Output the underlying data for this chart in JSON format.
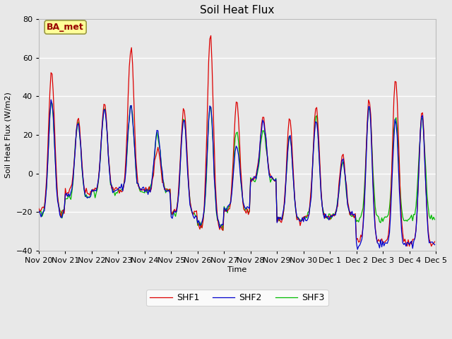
{
  "title": "Soil Heat Flux",
  "ylabel": "Soil Heat Flux (W/m2)",
  "xlabel": "Time",
  "ylim": [
    -40,
    80
  ],
  "annotation": "BA_met",
  "legend": [
    "SHF1",
    "SHF2",
    "SHF3"
  ],
  "legend_colors": [
    "#dd0000",
    "#0000cc",
    "#00bb00"
  ],
  "background_color": "#e8e8e8",
  "plot_bg_color": "#e8e8e8",
  "grid_color": "#ffffff",
  "annotation_bg": "#ffff99",
  "annotation_border": "#999944",
  "annotation_text_color": "#990000",
  "linewidth": 0.9,
  "n_points": 360,
  "xtick_positions": [
    0,
    24,
    48,
    72,
    96,
    120,
    144,
    168,
    192,
    216,
    240,
    264,
    288,
    312,
    336,
    360
  ],
  "xtick_labels": [
    "Nov 20",
    "Nov 21",
    "Nov 22",
    "Nov 23",
    "Nov 24",
    "Nov 25",
    "Nov 26",
    "Nov 27",
    "Nov 28",
    "Nov 29",
    "Nov 30",
    "Dec 1",
    "Dec 2",
    "Dec 3",
    "Dec 4",
    "Dec 5"
  ]
}
